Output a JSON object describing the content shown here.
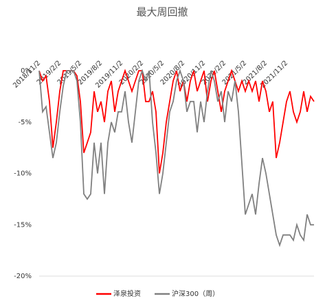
{
  "chart_data": {
    "type": "line",
    "title": "最大周回撤",
    "categories": [
      "2018/11/2",
      null,
      null,
      null,
      null,
      null,
      "2019/2/2",
      null,
      null,
      null,
      null,
      null,
      "2019/5/2",
      null,
      null,
      null,
      null,
      null,
      "2019/8/2",
      null,
      null,
      null,
      null,
      null,
      "2019/11/2",
      null,
      null,
      null,
      null,
      null,
      "2020/2/2",
      null,
      null,
      null,
      null,
      null,
      "2020/5/2",
      null,
      null,
      null,
      null,
      null,
      "2020/8/2",
      null,
      null,
      null,
      null,
      null,
      "2020/11/2",
      null,
      null,
      null,
      null,
      null,
      "2021/2/2",
      null,
      null,
      null,
      null,
      null,
      "2021/5/2",
      null,
      null,
      null,
      null,
      null,
      "2021/8/2",
      null,
      null,
      null,
      null,
      null,
      "2021/11/2",
      null,
      null,
      null,
      null,
      null,
      null,
      null,
      null
    ],
    "series": [
      {
        "name": "泽泉投资",
        "color": "#ff0000",
        "values": [
          0,
          -1,
          -0.5,
          -3,
          -7.5,
          -5,
          -2,
          0,
          0,
          0,
          0,
          -0.5,
          -3,
          -8,
          -7,
          -6,
          -2,
          -4,
          -3,
          -5,
          -2,
          -1,
          -4,
          -2,
          -1,
          0,
          -1,
          -2,
          -1,
          0,
          0,
          -3,
          -3,
          -2,
          -4,
          -10,
          -8,
          -5,
          -3,
          -1,
          0,
          -2,
          -1,
          -3,
          -1,
          0,
          -2,
          -1,
          0,
          -3,
          -1,
          0,
          -2,
          -4,
          -2,
          -1,
          0,
          -1,
          -2,
          -1,
          -2,
          -1,
          -2,
          -1,
          -3,
          -1,
          -2,
          -4,
          -3,
          -8.5,
          -7,
          -5,
          -3,
          -2,
          -4,
          -5,
          -4,
          -2,
          -4,
          -2.5,
          -3
        ]
      },
      {
        "name": "沪深300（周）",
        "color": "#808080",
        "values": [
          0,
          -4,
          -3.5,
          -6,
          -8.5,
          -7,
          -4,
          -1.5,
          0,
          0,
          0,
          -1,
          -5,
          -12,
          -12.5,
          -12,
          -7,
          -10,
          -7,
          -12,
          -7,
          -5,
          -6,
          -4,
          -4,
          -2,
          -5,
          -7,
          -4,
          -1,
          0,
          -1,
          0,
          -5,
          -8,
          -12,
          -10,
          -7,
          -4,
          -3,
          -1,
          0,
          -1,
          -4,
          -3,
          -3,
          -6,
          -3,
          -5,
          -2,
          0,
          -1,
          -3,
          -2,
          -5,
          -2,
          -3,
          -1,
          -4,
          -9,
          -14,
          -13,
          -12,
          -14,
          -11,
          -8.5,
          -10,
          -12,
          -14,
          -16,
          -17,
          -16,
          -16,
          -16,
          -16.5,
          -15,
          -16,
          -16.5,
          -14,
          -15,
          -15
        ]
      }
    ],
    "ylim": [
      -20,
      0
    ],
    "yticks": [
      {
        "value": 0,
        "label": "0%"
      },
      {
        "value": -5,
        "label": "-5%"
      },
      {
        "value": -10,
        "label": "-10%"
      },
      {
        "value": -15,
        "label": "-15%"
      },
      {
        "value": -20,
        "label": "-20%"
      }
    ],
    "grid": false
  }
}
